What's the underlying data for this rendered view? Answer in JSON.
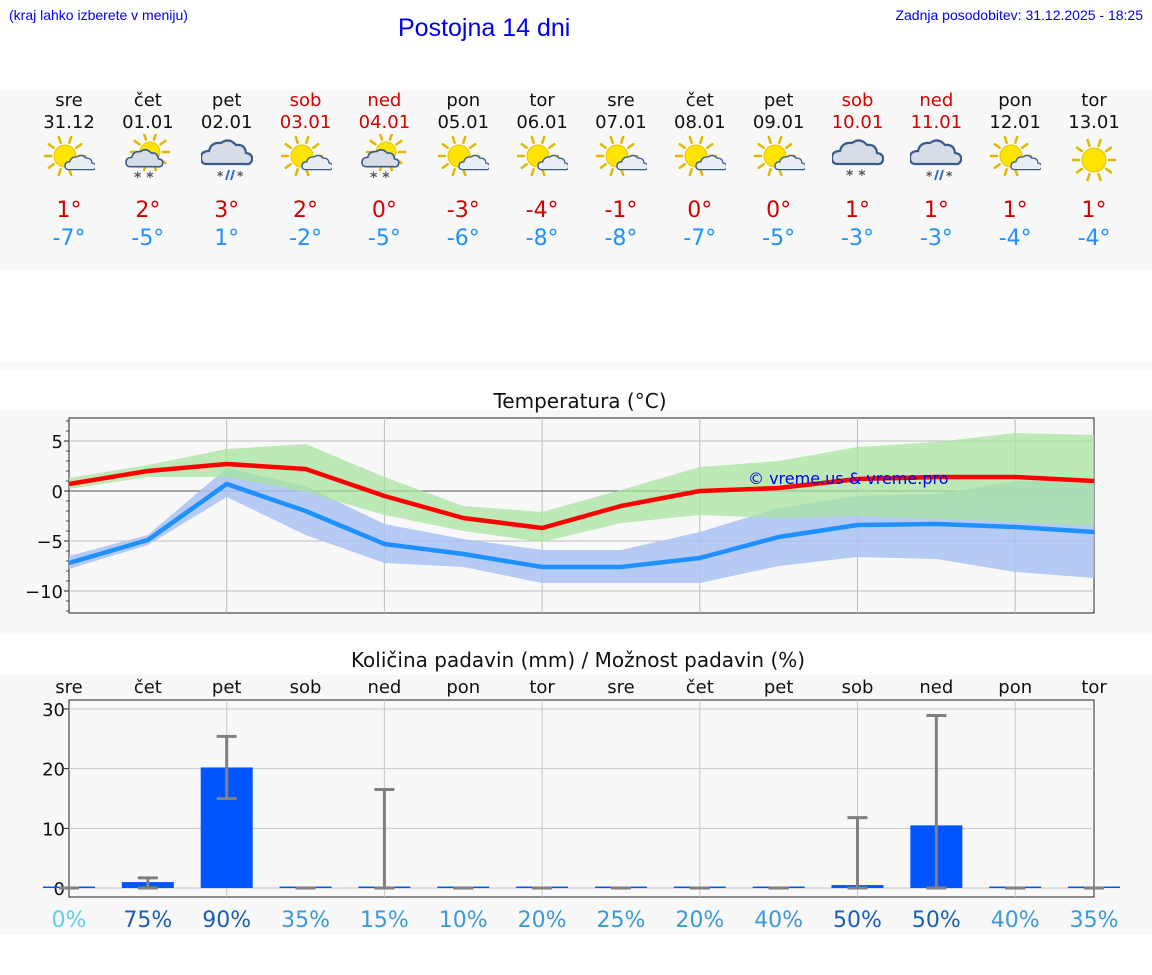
{
  "header": {
    "hint": "(kraj lahko izberete v meniju)",
    "title": "Postojna 14 dni",
    "updated": "Zadnja posodobitev: 31.12.2025 - 18:25"
  },
  "days": [
    {
      "weekday": "sre",
      "date": "31.12",
      "weekend": false,
      "icon": "sun-cloud-icon",
      "tmax": "1°",
      "tmin": "-7°"
    },
    {
      "weekday": "čet",
      "date": "01.01",
      "weekend": false,
      "icon": "sun-cloud-snow-icon",
      "tmax": "2°",
      "tmin": "-5°"
    },
    {
      "weekday": "pet",
      "date": "02.01",
      "weekend": false,
      "icon": "cloud-sleet-icon",
      "tmax": "3°",
      "tmin": "1°"
    },
    {
      "weekday": "sob",
      "date": "03.01",
      "weekend": true,
      "icon": "sun-cloud-icon",
      "tmax": "2°",
      "tmin": "-2°"
    },
    {
      "weekday": "ned",
      "date": "04.01",
      "weekend": true,
      "icon": "sun-cloud-snow-icon",
      "tmax": "0°",
      "tmin": "-5°"
    },
    {
      "weekday": "pon",
      "date": "05.01",
      "weekend": false,
      "icon": "sun-cloud-icon",
      "tmax": "-3°",
      "tmin": "-6°"
    },
    {
      "weekday": "tor",
      "date": "06.01",
      "weekend": false,
      "icon": "sun-cloud-icon",
      "tmax": "-4°",
      "tmin": "-8°"
    },
    {
      "weekday": "sre",
      "date": "07.01",
      "weekend": false,
      "icon": "sun-cloud-icon",
      "tmax": "-1°",
      "tmin": "-8°"
    },
    {
      "weekday": "čet",
      "date": "08.01",
      "weekend": false,
      "icon": "sun-cloud-icon",
      "tmax": "0°",
      "tmin": "-7°"
    },
    {
      "weekday": "pet",
      "date": "09.01",
      "weekend": false,
      "icon": "sun-cloud-icon",
      "tmax": "0°",
      "tmin": "-5°"
    },
    {
      "weekday": "sob",
      "date": "10.01",
      "weekend": true,
      "icon": "cloud-snow-icon",
      "tmax": "1°",
      "tmin": "-3°"
    },
    {
      "weekday": "ned",
      "date": "11.01",
      "weekend": true,
      "icon": "cloud-sleet-icon",
      "tmax": "1°",
      "tmin": "-3°"
    },
    {
      "weekday": "pon",
      "date": "12.01",
      "weekend": false,
      "icon": "sun-cloud-icon",
      "tmax": "1°",
      "tmin": "-4°"
    },
    {
      "weekday": "tor",
      "date": "13.01",
      "weekend": false,
      "icon": "sun-icon",
      "tmax": "1°",
      "tmin": "-4°"
    }
  ],
  "colors": {
    "weekend": "#d40000",
    "tmax_line": "#ff0000",
    "tmin_line": "#1e90ff",
    "max_band": "#a8e4a0",
    "min_band": "#a9c3f2",
    "bar": "#0055ff",
    "errbar": "#808080",
    "watermark": "#0000ee"
  },
  "chart_data": [
    {
      "type": "line",
      "title": "Temperatura (°C)",
      "watermark": "© vreme.us & vreme.pro",
      "ylim": [
        -12.2,
        7.3
      ],
      "yticks": [
        5,
        0,
        -5,
        -10
      ],
      "ytick_labels": [
        "5",
        "0",
        "−5",
        "−10"
      ],
      "x": [
        0,
        1,
        2,
        3,
        4,
        5,
        6,
        7,
        8,
        9,
        10,
        11,
        12,
        13
      ],
      "series": [
        {
          "name": "Tmax",
          "values": [
            0.7,
            2.0,
            2.7,
            2.2,
            -0.5,
            -2.7,
            -3.7,
            -1.5,
            0.0,
            0.3,
            1.2,
            1.4,
            1.4,
            1.0
          ]
        },
        {
          "name": "Tmin",
          "values": [
            -7.2,
            -4.9,
            0.7,
            -2.0,
            -5.3,
            -6.3,
            -7.6,
            -7.6,
            -6.7,
            -4.6,
            -3.4,
            -3.3,
            -3.6,
            -4.1
          ]
        }
      ],
      "max_band": {
        "upper": [
          1.3,
          2.6,
          4.2,
          4.7,
          1.4,
          -1.5,
          -2.1,
          0.1,
          2.4,
          3.0,
          4.4,
          4.9,
          5.8,
          5.6
        ],
        "lower": [
          0.2,
          1.4,
          1.4,
          -0.1,
          -2.4,
          -4.0,
          -5.1,
          -3.2,
          -2.4,
          -2.7,
          -2.5,
          -2.8,
          -3.1,
          -3.5
        ]
      },
      "min_band": {
        "upper": [
          -6.5,
          -4.4,
          2.3,
          0.5,
          -3.3,
          -4.8,
          -5.9,
          -5.9,
          -4.1,
          -1.7,
          -0.5,
          -0.3,
          1.0,
          0.9
        ],
        "lower": [
          -7.8,
          -5.4,
          -0.6,
          -4.4,
          -7.2,
          -7.6,
          -9.2,
          -9.2,
          -9.2,
          -7.5,
          -6.6,
          -6.8,
          -8.1,
          -8.7
        ]
      }
    },
    {
      "type": "bar",
      "title": "Količina padavin (mm) / Možnost padavin (%)",
      "ylim": [
        -1.5,
        31.5
      ],
      "yticks": [
        30,
        20,
        10,
        0
      ],
      "categories": [
        "sre",
        "čet",
        "pet",
        "sob",
        "ned",
        "pon",
        "tor",
        "sre",
        "čet",
        "pet",
        "sob",
        "ned",
        "pon",
        "tor"
      ],
      "values": [
        0,
        1.0,
        20.2,
        0,
        0.2,
        0,
        0,
        0,
        0,
        0,
        0.5,
        10.5,
        0,
        0
      ],
      "err_low": [
        0,
        0,
        15.0,
        0,
        0,
        0,
        0,
        0,
        0,
        0,
        0,
        0,
        0,
        0
      ],
      "err_high": [
        0,
        1.7,
        25.4,
        0,
        16.5,
        0,
        0,
        0,
        0,
        0,
        11.8,
        28.9,
        0,
        0
      ],
      "probabilities": [
        "0%",
        "75%",
        "90%",
        "35%",
        "15%",
        "10%",
        "20%",
        "25%",
        "20%",
        "40%",
        "50%",
        "50%",
        "40%",
        "35%"
      ],
      "prob_colors": [
        "#5fd0e8",
        "#1a5fb4",
        "#1a5fb4",
        "#3a9ad9",
        "#3a9ad9",
        "#3a9ad9",
        "#3a9ad9",
        "#3a9ad9",
        "#3a9ad9",
        "#3a9ad9",
        "#1a5fb4",
        "#1a5fb4",
        "#3a9ad9",
        "#3a9ad9"
      ]
    }
  ]
}
